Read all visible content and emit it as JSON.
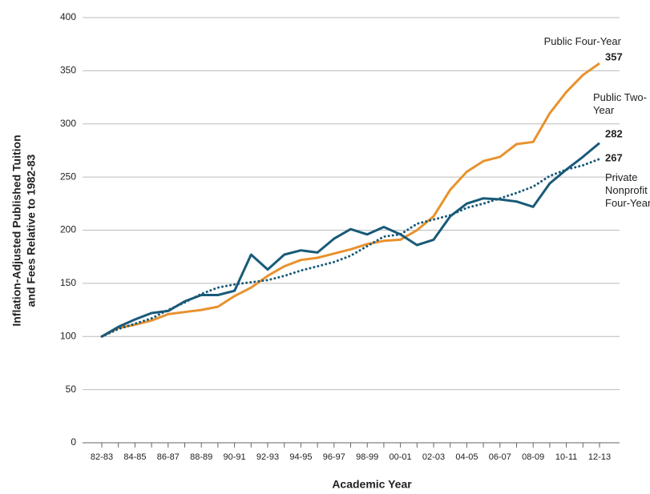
{
  "chart_data": {
    "type": "line",
    "x_label": "Academic Year",
    "y_label": [
      "Inflation-Adjusted Published Tuition",
      "and Fees Relative to 1982-83"
    ],
    "categories": [
      "82-83",
      null,
      "84-85",
      null,
      "86-87",
      null,
      "88-89",
      null,
      "90-91",
      null,
      "92-93",
      null,
      "94-95",
      null,
      "96-97",
      null,
      "98-99",
      null,
      "00-01",
      null,
      "02-03",
      null,
      "04-05",
      null,
      "06-07",
      null,
      "08-09",
      null,
      "10-11",
      null,
      "12-13"
    ],
    "ylim": [
      0,
      400
    ],
    "yticks": [
      0,
      50,
      100,
      150,
      200,
      250,
      300,
      350,
      400
    ],
    "grid": true,
    "series": [
      {
        "name": "Public Four-Year",
        "color": "#e8922e",
        "dash": "solid",
        "values": [
          100,
          108,
          111,
          115,
          121,
          123,
          125,
          128,
          138,
          146,
          157,
          166,
          172,
          174,
          178,
          182,
          187,
          190,
          191,
          200,
          213,
          238,
          255,
          265,
          269,
          281,
          283,
          310,
          330,
          346,
          357
        ]
      },
      {
        "name": "Public Two-Year",
        "color": "#195a78",
        "dash": "solid",
        "values": [
          100,
          109,
          116,
          122,
          124,
          133,
          139,
          139,
          143,
          177,
          163,
          177,
          181,
          179,
          192,
          201,
          196,
          203,
          196,
          186,
          191,
          213,
          225,
          230,
          229,
          227,
          222,
          244,
          257,
          269,
          282
        ]
      },
      {
        "name": "Private Nonprofit Four-Year",
        "color": "#195a78",
        "dash": "dotted",
        "values": [
          100,
          107,
          112,
          117,
          125,
          132,
          140,
          146,
          149,
          151,
          153,
          157,
          162,
          166,
          170,
          176,
          185,
          194,
          196,
          206,
          210,
          214,
          221,
          225,
          230,
          235,
          241,
          251,
          257,
          261,
          267
        ]
      }
    ]
  }
}
